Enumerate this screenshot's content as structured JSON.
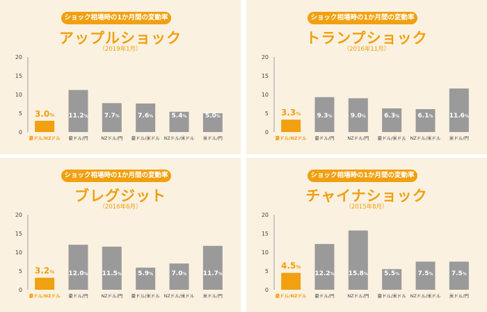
{
  "colors": {
    "accent": "#f0a010",
    "bar_gray": "#9a9a9a",
    "panel_bg": "#fbf1e1"
  },
  "chart_data": [
    {
      "type": "bar",
      "banner": "ショック相場時の1か月間の変動率",
      "title": "アップルショック",
      "subtitle": "（2019年1月）",
      "categories": [
        "豪ドル/NZドル",
        "豪ドル/円",
        "NZドル/円",
        "豪ドル/米ドル",
        "NZドル/米ドル",
        "米ドル/円"
      ],
      "values": [
        3.0,
        11.2,
        7.7,
        7.6,
        5.4,
        5.0
      ],
      "labels": [
        "3.0",
        "11.2",
        "7.7",
        "7.6",
        "5.4",
        "5.0"
      ],
      "unit": "%",
      "highlight_index": 0,
      "ylim": [
        0,
        20
      ],
      "yticks": [
        "0",
        "5",
        "10",
        "15",
        "20"
      ]
    },
    {
      "type": "bar",
      "banner": "ショック相場時の1か月間の変動率",
      "title": "トランプショック",
      "subtitle": "（2016年11月）",
      "categories": [
        "豪ドル/NZドル",
        "豪ドル/円",
        "NZドル/円",
        "豪ドル/米ドル",
        "NZドル/米ドル",
        "米ドル/円"
      ],
      "values": [
        3.3,
        9.3,
        9.0,
        6.3,
        6.1,
        11.6
      ],
      "labels": [
        "3.3",
        "9.3",
        "9.0",
        "6.3",
        "6.1",
        "11.6"
      ],
      "unit": "%",
      "highlight_index": 0,
      "ylim": [
        0,
        20
      ],
      "yticks": [
        "0",
        "5",
        "10",
        "15",
        "20"
      ]
    },
    {
      "type": "bar",
      "banner": "ショック相場時の1か月間の変動率",
      "title": "ブレグジット",
      "subtitle": "（2016年6月）",
      "categories": [
        "豪ドル/NZドル",
        "豪ドル/円",
        "NZドル/円",
        "豪ドル/米ドル",
        "NZドル/米ドル",
        "米ドル/円"
      ],
      "values": [
        3.2,
        12.0,
        11.5,
        5.9,
        7.0,
        11.7
      ],
      "labels": [
        "3.2",
        "12.0",
        "11.5",
        "5.9",
        "7.0",
        "11.7"
      ],
      "unit": "%",
      "highlight_index": 0,
      "ylim": [
        0,
        20
      ],
      "yticks": [
        "0",
        "5",
        "10",
        "15",
        "20"
      ]
    },
    {
      "type": "bar",
      "banner": "ショック相場時の1か月間の変動率",
      "title": "チャイナショック",
      "subtitle": "（2015年8月）",
      "categories": [
        "豪ドル/NZドル",
        "豪ドル/円",
        "NZドル/円",
        "豪ドル/米ドル",
        "NZドル/米ドル",
        "米ドル/円"
      ],
      "values": [
        4.5,
        12.2,
        15.8,
        5.5,
        7.5,
        7.5
      ],
      "labels": [
        "4.5",
        "12.2",
        "15.8",
        "5.5",
        "7.5",
        "7.5"
      ],
      "unit": "%",
      "highlight_index": 0,
      "ylim": [
        0,
        20
      ],
      "yticks": [
        "0",
        "5",
        "10",
        "15",
        "20"
      ]
    }
  ]
}
